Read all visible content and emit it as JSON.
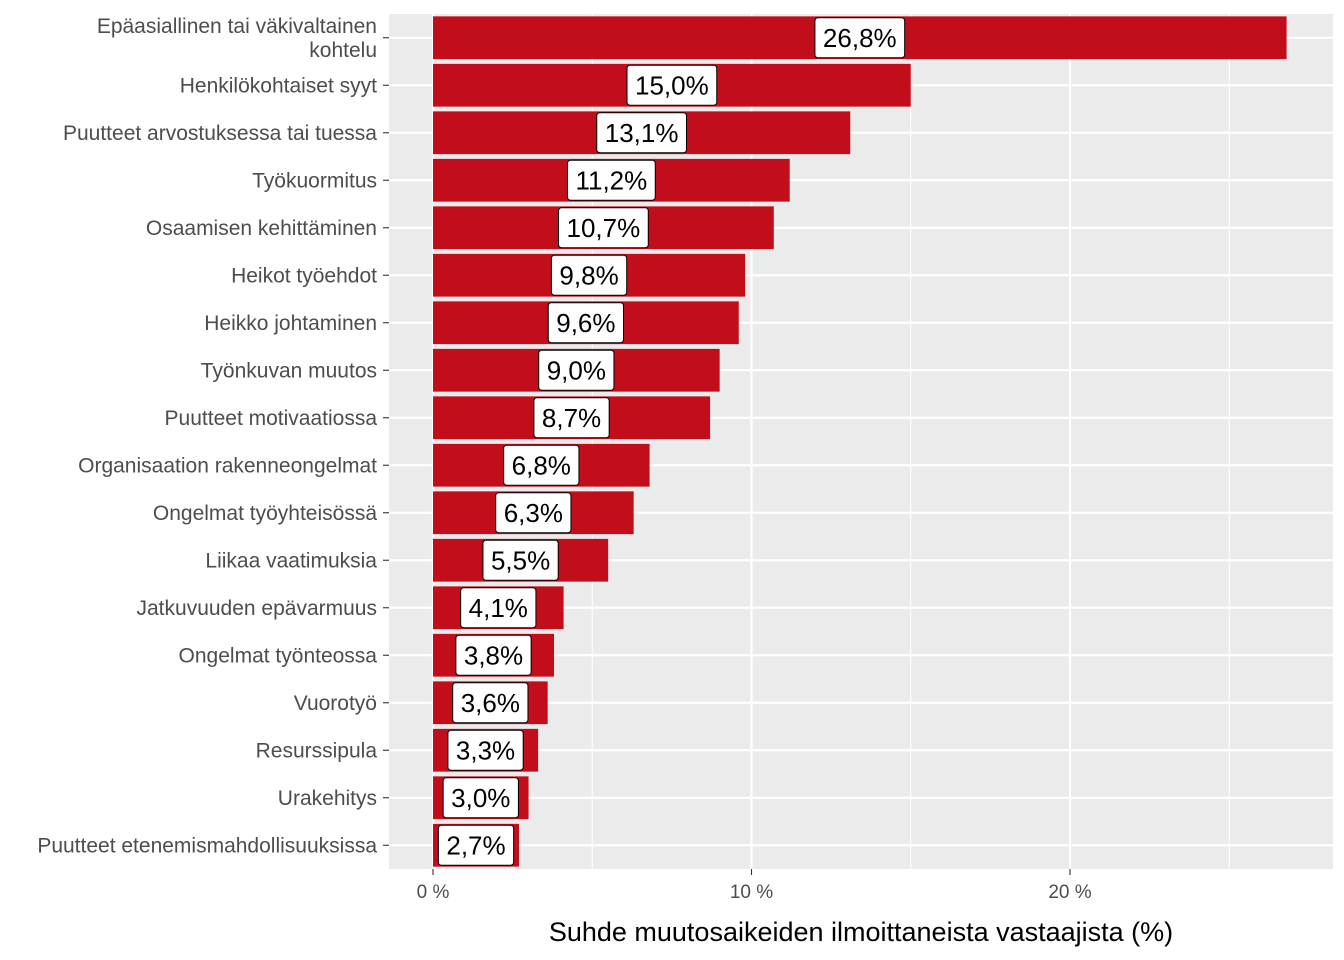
{
  "chart_data": {
    "type": "bar",
    "orientation": "horizontal",
    "xlabel": "Suhde muutosaikeiden ilmoittaneista vastaajista (%)",
    "ylabel": "",
    "xlim": [
      0,
      28
    ],
    "x_ticks": [
      0,
      10,
      20
    ],
    "x_tick_labels": [
      "0 %",
      "10 %",
      "20 %"
    ],
    "grid": true,
    "bar_color": "#c20e1a",
    "panel_color": "#ebebeb",
    "categories": [
      [
        "Epäasiallinen tai väkivaltainen",
        "kohtelu"
      ],
      [
        "Henkilökohtaiset syyt"
      ],
      [
        "Puutteet arvostuksessa tai tuessa"
      ],
      [
        "Työkuormitus"
      ],
      [
        "Osaamisen kehittäminen"
      ],
      [
        "Heikot työehdot"
      ],
      [
        "Heikko johtaminen"
      ],
      [
        "Työnkuvan muutos"
      ],
      [
        "Puutteet motivaatiossa"
      ],
      [
        "Organisaation rakenneongelmat"
      ],
      [
        "Ongelmat työyhteisössä"
      ],
      [
        "Liikaa vaatimuksia"
      ],
      [
        "Jatkuvuuden epävarmuus"
      ],
      [
        "Ongelmat työnteossa"
      ],
      [
        "Vuorotyö"
      ],
      [
        "Resurssipula"
      ],
      [
        "Urakehitys"
      ],
      [
        "Puutteet etenemismahdollisuuksissa"
      ]
    ],
    "values": [
      26.8,
      15.0,
      13.1,
      11.2,
      10.7,
      9.8,
      9.6,
      9.0,
      8.7,
      6.8,
      6.3,
      5.5,
      4.1,
      3.8,
      3.6,
      3.3,
      3.0,
      2.7
    ],
    "value_labels": [
      "26,8%",
      "15,0%",
      "13,1%",
      "11,2%",
      "10,7%",
      "9,8%",
      "9,6%",
      "9,0%",
      "8,7%",
      "6,8%",
      "6,3%",
      "5,5%",
      "4,1%",
      "3,8%",
      "3,6%",
      "3,3%",
      "3,0%",
      "2,7%"
    ]
  }
}
